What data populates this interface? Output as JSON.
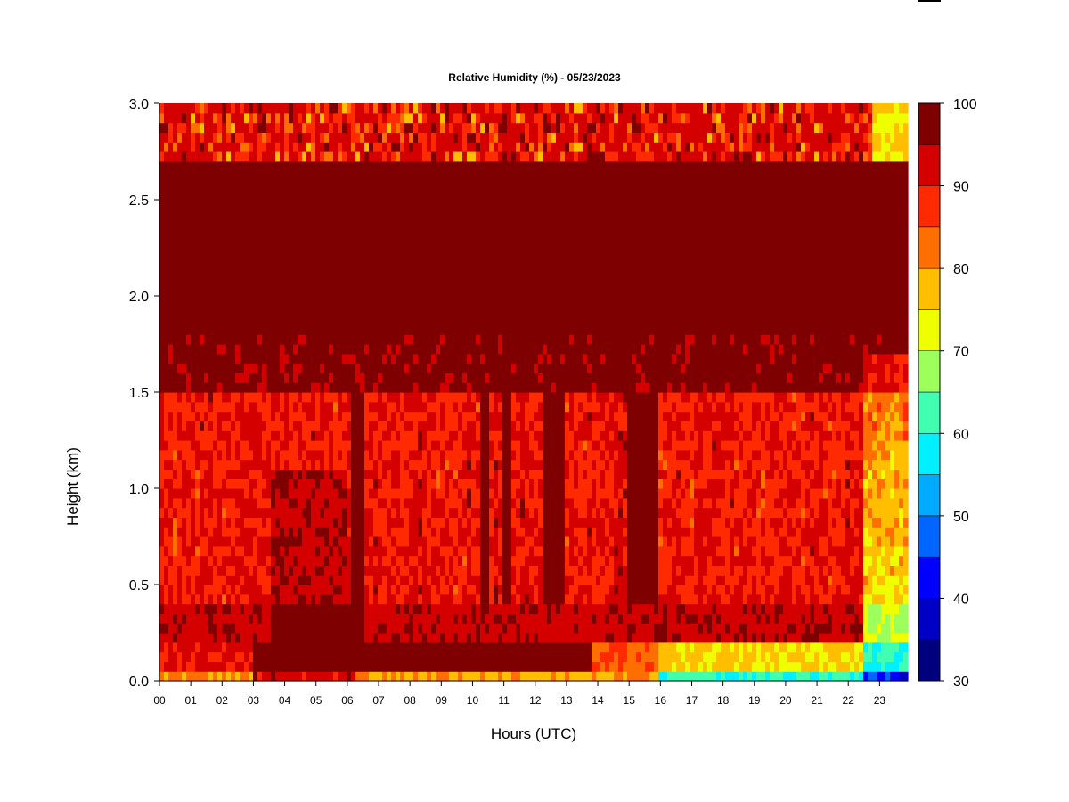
{
  "chart_data": {
    "type": "heatmap",
    "title": "Relative Humidity (%) - 05/23/2023",
    "xlabel": "Hours (UTC)",
    "ylabel": "Height (km)",
    "x_ticks": [
      "00",
      "01",
      "02",
      "03",
      "04",
      "05",
      "06",
      "07",
      "08",
      "09",
      "10",
      "11",
      "12",
      "13",
      "14",
      "15",
      "16",
      "17",
      "18",
      "19",
      "20",
      "21",
      "22",
      "23"
    ],
    "x_range": [
      0,
      23.9
    ],
    "y_ticks": [
      "0.0",
      "0.5",
      "1.0",
      "1.5",
      "2.0",
      "2.5",
      "3.0"
    ],
    "y_range": [
      0,
      3.0
    ],
    "colorbar": {
      "ticks": [
        "30",
        "40",
        "50",
        "60",
        "70",
        "80",
        "90",
        "100"
      ],
      "range": [
        30,
        100
      ],
      "levels": [
        {
          "from": 30,
          "to": 35,
          "color": "#00007f"
        },
        {
          "from": 35,
          "to": 40,
          "color": "#0000c4"
        },
        {
          "from": 40,
          "to": 45,
          "color": "#0000ff"
        },
        {
          "from": 45,
          "to": 50,
          "color": "#0066ff"
        },
        {
          "from": 50,
          "to": 55,
          "color": "#00aaff"
        },
        {
          "from": 55,
          "to": 60,
          "color": "#00f0ff"
        },
        {
          "from": 60,
          "to": 65,
          "color": "#40ffb0"
        },
        {
          "from": 65,
          "to": 70,
          "color": "#9dff5c"
        },
        {
          "from": 70,
          "to": 75,
          "color": "#f0ff00"
        },
        {
          "from": 75,
          "to": 80,
          "color": "#ffbf00"
        },
        {
          "from": 80,
          "to": 85,
          "color": "#ff6f00"
        },
        {
          "from": 85,
          "to": 90,
          "color": "#ff2a00"
        },
        {
          "from": 90,
          "to": 95,
          "color": "#d40000"
        },
        {
          "from": 95,
          "to": 100,
          "color": "#7f0000"
        }
      ]
    },
    "features": {
      "saturated_layer_km": [
        0.3,
        2.7
      ],
      "dry_surface_after_hour": 16,
      "very_dry_after_hour": 22.5,
      "moist_columns_hours": [
        [
          6.1,
          6.5
        ],
        [
          10.2,
          10.5
        ],
        [
          11.0,
          11.3
        ],
        [
          12.3,
          12.9
        ],
        [
          15.0,
          15.9
        ]
      ]
    }
  }
}
